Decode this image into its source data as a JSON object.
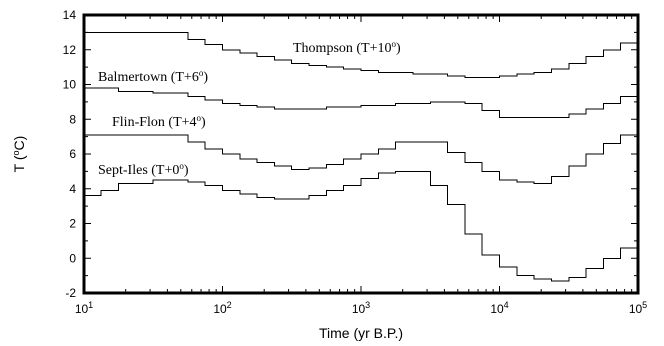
{
  "chart_data": {
    "type": "line",
    "step": true,
    "xscale": "log",
    "xlim": [
      10,
      100000
    ],
    "ylim": [
      -2,
      14
    ],
    "xlabel": "Time (yr B.P.)",
    "ylabel_parts": {
      "pre": "T (",
      "sup": "o",
      "post": "C)"
    },
    "yticks": [
      "-2",
      "0",
      "2",
      "4",
      "6",
      "8",
      "10",
      "12",
      "14"
    ],
    "xticks": [
      {
        "value": 10,
        "base": "10",
        "exp": "1"
      },
      {
        "value": 100,
        "base": "10",
        "exp": "2"
      },
      {
        "value": 1000,
        "base": "10",
        "exp": "3"
      },
      {
        "value": 10000,
        "base": "10",
        "exp": "4"
      },
      {
        "value": 100000,
        "base": "10",
        "exp": "5"
      }
    ],
    "grid": false,
    "annotations": [
      {
        "pre": "Thompson  (T+10",
        "sup": "o",
        "post": ")"
      },
      {
        "pre": "Balmertown (T+6",
        "sup": "o",
        "post": ")"
      },
      {
        "pre": "Flin-Flon  (T+4",
        "sup": "o",
        "post": ")"
      },
      {
        "pre": "Sept-Iles (T+0",
        "sup": "o",
        "post": ")"
      }
    ],
    "series": [
      {
        "x": [
          10,
          56.2,
          74.9,
          100,
          133.4,
          177.8,
          237.1,
          316.2,
          421.7,
          562.3,
          749.9,
          1000,
          1333.5,
          1778.3,
          2371.4,
          3162.3,
          4217,
          5623,
          7498.9,
          10000,
          13335,
          17783,
          23714,
          31623,
          42170,
          56234,
          74989,
          100000
        ],
        "y": [
          13.0,
          12.6,
          12.3,
          12.0,
          11.8,
          11.6,
          11.4,
          11.2,
          11.1,
          11.0,
          10.9,
          10.8,
          10.7,
          10.7,
          10.6,
          10.6,
          10.5,
          10.4,
          10.4,
          10.5,
          10.6,
          10.7,
          10.9,
          11.2,
          11.6,
          12.0,
          12.4,
          12.4
        ]
      },
      {
        "x": [
          10,
          17.8,
          31.6,
          56.2,
          74.9,
          100,
          133.4,
          177.8,
          237.1,
          316.2,
          562.3,
          1000,
          1778.3,
          3162.3,
          5623,
          7498.9,
          10000,
          17783,
          31623,
          42170,
          56234,
          74989,
          100000
        ],
        "y": [
          9.8,
          9.6,
          9.5,
          9.3,
          9.1,
          8.9,
          8.8,
          8.7,
          8.6,
          8.6,
          8.7,
          8.8,
          8.9,
          9.0,
          8.9,
          8.5,
          8.1,
          8.1,
          8.3,
          8.6,
          8.9,
          9.3,
          9.3
        ]
      },
      {
        "x": [
          10,
          56.2,
          74.9,
          100,
          133.4,
          177.8,
          237.1,
          316.2,
          421.7,
          562.3,
          749.9,
          1000,
          1333.5,
          1778.3,
          3162.3,
          4217,
          5623,
          7498.9,
          10000,
          13335,
          17783,
          23714,
          31623,
          42170,
          56234,
          74989,
          100000
        ],
        "y": [
          7.1,
          6.7,
          6.3,
          6.0,
          5.7,
          5.5,
          5.3,
          5.1,
          5.2,
          5.4,
          5.7,
          6.0,
          6.3,
          6.7,
          6.7,
          6.1,
          5.5,
          5.0,
          4.5,
          4.4,
          4.3,
          4.7,
          5.3,
          6.0,
          6.6,
          7.1,
          7.4
        ]
      },
      {
        "x": [
          10,
          13.3,
          17.8,
          31.6,
          56.2,
          74.9,
          100,
          133.4,
          177.8,
          237.1,
          316.2,
          421.7,
          562.3,
          749.9,
          1000,
          1333.5,
          1778.3,
          3162.3,
          4217,
          5623,
          7498.9,
          10000,
          13335,
          17783,
          23714,
          31623,
          42170,
          56234,
          74989,
          100000
        ],
        "y": [
          3.6,
          3.9,
          4.3,
          4.5,
          4.4,
          4.2,
          3.9,
          3.7,
          3.5,
          3.4,
          3.4,
          3.6,
          3.9,
          4.2,
          4.6,
          4.9,
          5.0,
          4.2,
          3.1,
          1.4,
          0.2,
          -0.5,
          -1.0,
          -1.2,
          -1.3,
          -1.1,
          -0.6,
          0.0,
          0.6,
          0.6
        ]
      }
    ]
  }
}
